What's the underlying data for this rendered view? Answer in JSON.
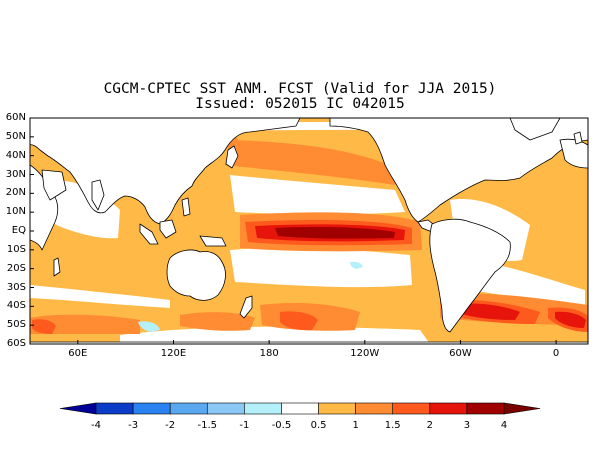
{
  "title": {
    "line1": "CGCM-CPTEC SST ANM. FCST  (Valid for JJA 2015)",
    "line2": "Issued:  052015 IC 042015"
  },
  "lat_labels": [
    "60N",
    "50N",
    "40N",
    "30N",
    "20N",
    "10N",
    "EQ",
    "10S",
    "20S",
    "30S",
    "40S",
    "50S",
    "60S"
  ],
  "lon_labels": [
    "60E",
    "120E",
    "180",
    "120W",
    "60W",
    "0"
  ],
  "lon_values": [
    60,
    120,
    180,
    240,
    300,
    360
  ],
  "colorbar": {
    "labels": [
      "-4",
      "-3",
      "-2",
      "-1.5",
      "-1",
      "-0.5",
      "0.5",
      "1",
      "1.5",
      "2",
      "3",
      "4"
    ],
    "colors": [
      "#000096",
      "#0a3cc8",
      "#2a82f0",
      "#5aa8f0",
      "#8cc8f5",
      "#b4f0fa",
      "#ffffff",
      "#ffb946",
      "#ff8c32",
      "#ff5a1e",
      "#e6140a",
      "#a00000",
      "#780000"
    ]
  },
  "map": {
    "lon_range": [
      30,
      380
    ],
    "lat_range": [
      -60,
      60
    ],
    "colors": {
      "land": "#ffffff",
      "anom05": "#ffb946",
      "anom1": "#ff8c32",
      "anom15": "#ff5a1e",
      "anom2": "#e6140a",
      "anom3": "#a00000",
      "neg05": "#b4f0fa",
      "neg1": "#8cc8f5"
    }
  }
}
